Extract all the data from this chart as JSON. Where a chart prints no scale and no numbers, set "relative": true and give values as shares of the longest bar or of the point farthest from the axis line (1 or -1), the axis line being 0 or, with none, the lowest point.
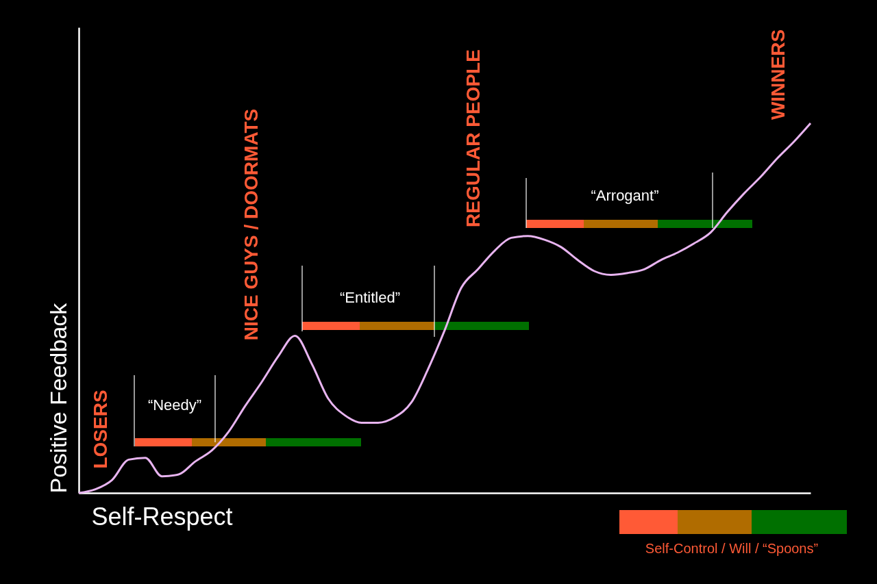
{
  "chart_data": {
    "type": "line",
    "relative": true,
    "xlabel": "Self-Respect",
    "ylabel": "Positive Feedback",
    "tick_labels": false,
    "categories": [
      null,
      null,
      null,
      null,
      null,
      null,
      null,
      null,
      null,
      null,
      null,
      null,
      null,
      null,
      null,
      null,
      null,
      null,
      null,
      null,
      null,
      null,
      null,
      null,
      null,
      null,
      null,
      null,
      null,
      null,
      null,
      null,
      null,
      null,
      null,
      null,
      null,
      null,
      null,
      null,
      null,
      null,
      null,
      null,
      null
    ],
    "series": [
      {
        "color": "#e8b4f0",
        "values": [
          0,
          0.01,
          0.035,
          0.09,
          0.095,
          0.045,
          0.05,
          0.085,
          0.115,
          0.165,
          0.235,
          0.3,
          0.37,
          0.425,
          0.35,
          0.255,
          0.21,
          0.19,
          0.19,
          0.205,
          0.245,
          0.335,
          0.44,
          0.555,
          0.605,
          0.655,
          0.69,
          0.695,
          0.685,
          0.665,
          0.63,
          0.6,
          0.59,
          0.595,
          0.605,
          0.63,
          0.65,
          0.675,
          0.705,
          0.76,
          0.81,
          0.855,
          0.905,
          0.95,
          1
        ]
      }
    ],
    "annotations": [
      "LOSERS",
      "NICE GUYS / DOORMATS",
      "REGULAR PEOPLE",
      "WINNERS",
      "“Needy”",
      "“Entitled”",
      "“Arrogant”",
      "Self-Control / Will / “Spoons”"
    ]
  }
}
